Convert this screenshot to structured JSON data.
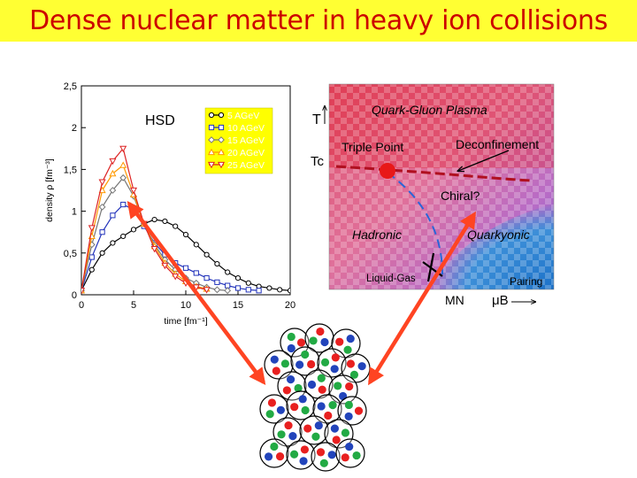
{
  "slide": {
    "title": "Dense nuclear matter in heavy ion collisions",
    "title_color": "#cc0000",
    "title_bg": "#ffff33"
  },
  "chart_data": [
    {
      "type": "line",
      "annotation": "HSD",
      "xlabel": "time [fm⁻¹]",
      "ylabel": "density ρ [fm⁻³]",
      "xlim": [
        0,
        20
      ],
      "ylim": [
        0,
        2.5
      ],
      "x_ticks": [
        0,
        5,
        10,
        15,
        20
      ],
      "y_ticks": [
        0,
        0.5,
        1,
        1.5,
        2,
        2.5
      ],
      "x_tick_labels": [
        "0",
        "5",
        "10",
        "15",
        "20"
      ],
      "y_tick_labels": [
        "0",
        "0,5",
        "1",
        "1,5",
        "2",
        "2,5"
      ],
      "legend_placement": "top-right",
      "grid": false,
      "series": [
        {
          "name": "5 AGeV",
          "color": "#000000",
          "marker": "circle",
          "x": [
            0,
            1,
            2,
            3,
            4,
            5,
            6,
            7,
            8,
            9,
            10,
            11,
            12,
            13,
            14,
            15,
            16,
            17,
            18,
            19,
            20
          ],
          "y": [
            0.05,
            0.3,
            0.5,
            0.62,
            0.7,
            0.78,
            0.85,
            0.9,
            0.88,
            0.82,
            0.72,
            0.6,
            0.48,
            0.37,
            0.27,
            0.2,
            0.14,
            0.1,
            0.08,
            0.06,
            0.05
          ]
        },
        {
          "name": "10 AGeV",
          "color": "#2233bb",
          "marker": "square",
          "x": [
            0,
            1,
            2,
            3,
            4,
            5,
            6,
            7,
            8,
            9,
            10,
            11,
            12,
            13,
            14,
            15,
            16,
            17
          ],
          "y": [
            0.05,
            0.45,
            0.75,
            0.95,
            1.08,
            1.02,
            0.82,
            0.62,
            0.48,
            0.38,
            0.32,
            0.26,
            0.2,
            0.15,
            0.11,
            0.08,
            0.06,
            0.05
          ]
        },
        {
          "name": "15 AGeV",
          "color": "#777777",
          "marker": "diamond",
          "x": [
            0,
            1,
            2,
            3,
            4,
            5,
            6,
            7,
            8,
            9,
            10,
            11,
            12,
            13,
            14
          ],
          "y": [
            0.05,
            0.6,
            1.05,
            1.25,
            1.4,
            1.18,
            0.85,
            0.6,
            0.42,
            0.3,
            0.2,
            0.14,
            0.09,
            0.06,
            0.05
          ]
        },
        {
          "name": "20 AGeV",
          "color": "#ff9900",
          "marker": "triangle-up",
          "x": [
            0,
            1,
            2,
            3,
            4,
            5,
            6,
            7,
            8,
            9,
            10,
            11,
            12
          ],
          "y": [
            0.05,
            0.7,
            1.25,
            1.45,
            1.55,
            1.2,
            0.85,
            0.58,
            0.38,
            0.25,
            0.16,
            0.1,
            0.07
          ]
        },
        {
          "name": "25 AGeV",
          "color": "#dd2222",
          "marker": "triangle-down",
          "x": [
            0,
            1,
            2,
            3,
            4,
            5,
            6,
            7,
            8,
            9,
            10,
            11,
            12
          ],
          "y": [
            0.05,
            0.8,
            1.35,
            1.6,
            1.75,
            1.25,
            0.85,
            0.55,
            0.35,
            0.22,
            0.14,
            0.09,
            0.06
          ]
        }
      ]
    },
    {
      "type": "diagram",
      "xlabel": "μB",
      "ylabel": "T",
      "y_marker_label": "Tc",
      "x_marker_label": "MN",
      "regions": [
        "Quark-Gluon Plasma",
        "Triple Point",
        "Deconfinement",
        "Chiral?",
        "Hadronic",
        "Quarkyonic",
        "Liquid-Gas",
        "Pairing"
      ]
    }
  ],
  "arrows": {
    "color": "#ff4422"
  },
  "nucleus": {
    "colors": [
      "#e82020",
      "#2244bb",
      "#22aa44"
    ]
  }
}
